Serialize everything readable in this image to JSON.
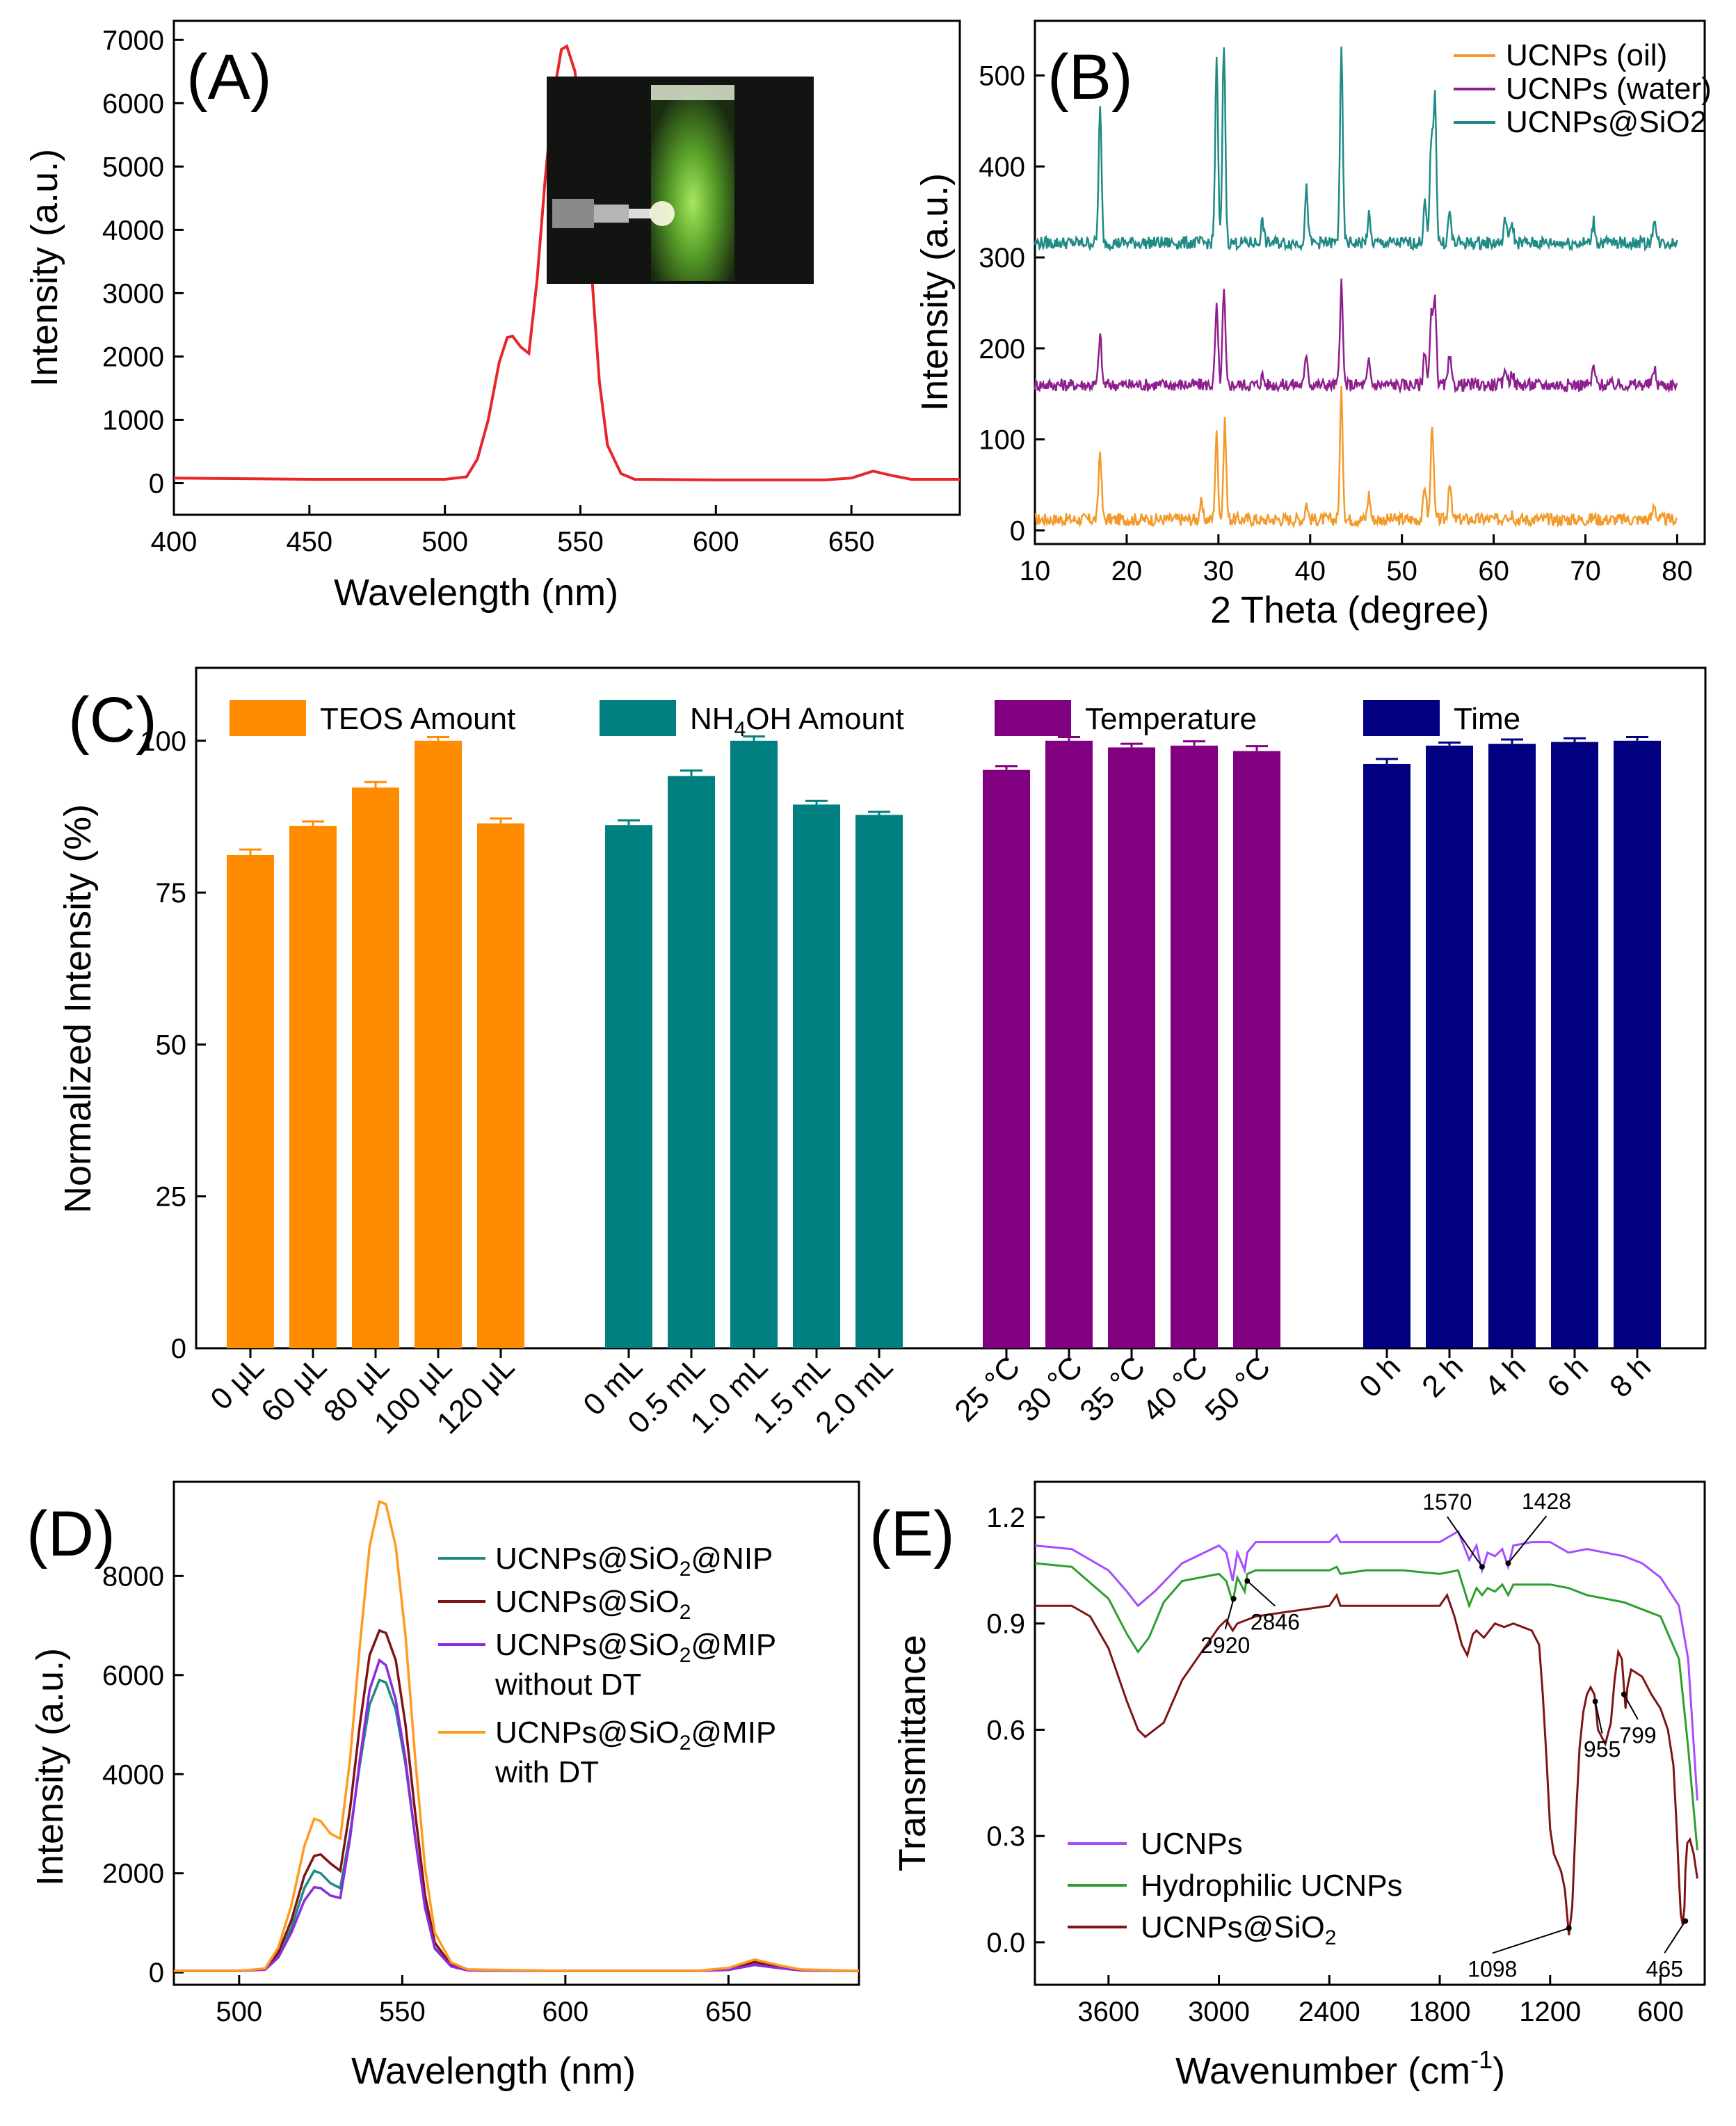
{
  "colors": {
    "a_line": "#e8262a",
    "oil": "#f39a2a",
    "water": "#8f1f8f",
    "sio2_teal": "#1f8a86",
    "teos": "#ff8c00",
    "nh4oh": "#008080",
    "temperature": "#800080",
    "time": "#000080",
    "nip": "#1f8a86",
    "sio2_dark": "#7f1414",
    "mip_without": "#8b2be2",
    "mip_with": "#ff9a1f",
    "ucnps_e": "#a64dff",
    "hydrophilic": "#2e9e2e"
  },
  "chart_data": [
    {
      "panel": "(A)",
      "type": "line",
      "xlabel": "Wavelength (nm)",
      "ylabel": "Intensity (a.u.)",
      "xlim": [
        400,
        690
      ],
      "ylim": [
        -500,
        7300
      ],
      "xticks": [
        "400",
        "450",
        "500",
        "550",
        "600",
        "650"
      ],
      "yticks": [
        "0",
        "1000",
        "2000",
        "3000",
        "4000",
        "5000",
        "6000",
        "7000"
      ],
      "x": [
        400,
        450,
        500,
        508,
        512,
        516,
        520,
        523,
        525,
        528,
        531,
        534,
        537,
        540,
        543,
        545,
        548,
        551,
        554,
        557,
        560,
        565,
        570,
        600,
        640,
        650,
        658,
        665,
        672,
        690
      ],
      "y": [
        80,
        60,
        60,
        100,
        380,
        1000,
        1900,
        2300,
        2320,
        2150,
        2050,
        3200,
        4800,
        6100,
        6850,
        6900,
        6500,
        5300,
        3400,
        1600,
        600,
        150,
        60,
        50,
        50,
        80,
        190,
        120,
        60,
        60
      ],
      "inset": "photo of green luminescent cuvette"
    },
    {
      "panel": "(B)",
      "type": "line",
      "xlabel": "2 Theta (degree)",
      "ylabel": "Intensity (a.u.)",
      "xlim": [
        10,
        83
      ],
      "ylim": [
        -15,
        560
      ],
      "xticks": [
        "10",
        "20",
        "30",
        "40",
        "50",
        "60",
        "70",
        "80"
      ],
      "yticks": [
        "0",
        "100",
        "200",
        "300",
        "400",
        "500"
      ],
      "legend": [
        "UCNPs (oil)",
        "UCNPs (water)",
        "UCNPs@SiO2"
      ],
      "series": [
        {
          "name": "UCNPs (oil)",
          "baseline": 12,
          "peaks": [
            [
              17.1,
              88
            ],
            [
              28.1,
              30
            ],
            [
              29.8,
              105
            ],
            [
              30.7,
              118
            ],
            [
              34.8,
              10
            ],
            [
              39.6,
              30
            ],
            [
              43.4,
              152
            ],
            [
              46.4,
              40
            ],
            [
              52.5,
              50
            ],
            [
              53.3,
              120
            ],
            [
              55.2,
              55
            ],
            [
              61.3,
              22
            ],
            [
              62.0,
              20
            ],
            [
              70.9,
              15
            ],
            [
              77.5,
              30
            ]
          ]
        },
        {
          "name": "UCNPs (water)",
          "baseline": 160,
          "peaks": [
            [
              17.1,
              215
            ],
            [
              29.8,
              245
            ],
            [
              30.6,
              262
            ],
            [
              34.8,
              170
            ],
            [
              39.6,
              195
            ],
            [
              43.4,
              270
            ],
            [
              46.4,
              185
            ],
            [
              52.5,
              200
            ],
            [
              53.2,
              235
            ],
            [
              53.6,
              255
            ],
            [
              55.2,
              190
            ],
            [
              61.3,
              180
            ],
            [
              62.0,
              175
            ],
            [
              70.9,
              180
            ],
            [
              77.5,
              178
            ]
          ]
        },
        {
          "name": "UCNPs@SiO2",
          "baseline": 316,
          "peaks": [
            [
              17.1,
              462
            ],
            [
              29.8,
              515
            ],
            [
              30.6,
              535
            ],
            [
              34.8,
              340
            ],
            [
              39.6,
              375
            ],
            [
              43.4,
              525
            ],
            [
              46.4,
              345
            ],
            [
              52.5,
              360
            ],
            [
              53.2,
              430
            ],
            [
              53.6,
              480
            ],
            [
              55.2,
              350
            ],
            [
              61.3,
              345
            ],
            [
              62.0,
              340
            ],
            [
              70.9,
              340
            ],
            [
              77.5,
              345
            ]
          ]
        }
      ]
    },
    {
      "panel": "(C)",
      "type": "bar",
      "ylabel": "Normalized Intensity (%)",
      "ylim": [
        0,
        112
      ],
      "yticks": [
        "0",
        "25",
        "50",
        "75",
        "100"
      ],
      "legend": [
        "TEOS Amount",
        "NH4OH Amount",
        "Temperature",
        "Time"
      ],
      "groups": [
        {
          "name": "TEOS Amount",
          "categories": [
            "0 μL",
            "60 μL",
            "80 μL",
            "100 μL",
            "120 μL"
          ],
          "values": [
            81.2,
            86.0,
            92.3,
            100.0,
            86.4
          ],
          "errors": [
            0.9,
            0.7,
            0.9,
            0.6,
            0.8
          ]
        },
        {
          "name": "NH4OH Amount",
          "categories": [
            "0 mL",
            "0.5 mL",
            "1.0 mL",
            "1.5 mL",
            "2.0 mL"
          ],
          "values": [
            86.1,
            94.2,
            100.0,
            89.5,
            87.8
          ],
          "errors": [
            0.8,
            0.9,
            0.7,
            0.6,
            0.5
          ]
        },
        {
          "name": "Temperature",
          "categories": [
            "25 °C",
            "30 °C",
            "35 °C",
            "40 °C",
            "50 °C"
          ],
          "values": [
            95.2,
            100.0,
            98.9,
            99.2,
            98.3
          ],
          "errors": [
            0.6,
            0.6,
            0.6,
            0.7,
            0.8
          ]
        },
        {
          "name": "Time",
          "categories": [
            "0 h",
            "2 h",
            "4 h",
            "6 h",
            "8 h"
          ],
          "values": [
            96.2,
            99.2,
            99.5,
            99.8,
            100.0
          ],
          "errors": [
            0.8,
            0.5,
            0.7,
            0.6,
            0.6
          ]
        }
      ]
    },
    {
      "panel": "(D)",
      "type": "line",
      "xlabel": "Wavelength (nm)",
      "ylabel": "Intensity (a.u.)",
      "xlim": [
        480,
        690
      ],
      "ylim": [
        -250,
        9900
      ],
      "xticks": [
        "500",
        "550",
        "600",
        "650"
      ],
      "yticks": [
        "0",
        "2000",
        "4000",
        "6000",
        "8000"
      ],
      "legend": [
        "UCNPs@SiO2@NIP",
        "UCNPs@SiO2",
        "UCNPs@SiO2@MIP without DT",
        "UCNPs@SiO2@MIP with DT"
      ],
      "x": [
        480,
        500,
        508,
        512,
        516,
        520,
        523,
        525,
        528,
        531,
        534,
        537,
        540,
        543,
        545,
        548,
        551,
        554,
        557,
        560,
        565,
        570,
        600,
        640,
        650,
        658,
        665,
        672,
        690
      ],
      "series": [
        {
          "name": "UCNPs@SiO2@NIP",
          "y": [
            30,
            30,
            60,
            350,
            900,
            1700,
            2050,
            2000,
            1800,
            1700,
            2800,
            4200,
            5400,
            5900,
            5850,
            5300,
            4200,
            2700,
            1300,
            500,
            120,
            40,
            30,
            30,
            60,
            170,
            100,
            40,
            30
          ]
        },
        {
          "name": "UCNPs@SiO2",
          "y": [
            30,
            30,
            70,
            400,
            1050,
            1950,
            2350,
            2380,
            2200,
            2050,
            3300,
            5000,
            6400,
            6900,
            6850,
            6300,
            5000,
            3200,
            1550,
            600,
            150,
            50,
            30,
            30,
            70,
            210,
            120,
            50,
            30
          ]
        },
        {
          "name": "UCNPs@SiO2@MIP without DT",
          "y": [
            30,
            30,
            55,
            300,
            800,
            1450,
            1720,
            1700,
            1550,
            1500,
            2700,
            4300,
            5700,
            6300,
            6200,
            5500,
            4300,
            2700,
            1300,
            480,
            120,
            40,
            30,
            30,
            50,
            150,
            90,
            40,
            30
          ]
        },
        {
          "name": "UCNPs@SiO2@MIP with DT",
          "y": [
            30,
            30,
            80,
            500,
            1350,
            2550,
            3100,
            3050,
            2800,
            2700,
            4300,
            6600,
            8600,
            9500,
            9450,
            8600,
            6800,
            4300,
            2100,
            800,
            200,
            60,
            30,
            30,
            90,
            260,
            150,
            60,
            30
          ]
        }
      ]
    },
    {
      "panel": "(E)",
      "type": "line",
      "xlabel": "Wavenumber (cm-1)",
      "ylabel": "Transmittance",
      "xlim": [
        4000,
        360
      ],
      "ylim": [
        -0.12,
        1.3
      ],
      "xticks": [
        "3600",
        "3000",
        "2400",
        "1800",
        "1200",
        "600"
      ],
      "yticks": [
        "0.0",
        "0.3",
        "0.6",
        "0.9",
        "1.2"
      ],
      "legend": [
        "UCNPs",
        "Hydrophilic UCNPs",
        "UCNPs@SiO2"
      ],
      "annotations": [
        "1570",
        "1428",
        "2920",
        "2846",
        "955",
        "799",
        "1098",
        "465"
      ],
      "series": [
        {
          "name": "UCNPs",
          "x": [
            4000,
            3800,
            3600,
            3500,
            3440,
            3350,
            3200,
            3000,
            2960,
            2925,
            2900,
            2860,
            2846,
            2800,
            2600,
            2400,
            2360,
            2340,
            2200,
            2000,
            1800,
            1700,
            1640,
            1600,
            1570,
            1540,
            1500,
            1460,
            1428,
            1400,
            1300,
            1200,
            1100,
            1000,
            900,
            800,
            700,
            600,
            500,
            450,
            400
          ],
          "y": [
            1.12,
            1.11,
            1.05,
            0.99,
            0.95,
            0.99,
            1.07,
            1.12,
            1.1,
            1.02,
            1.1,
            1.05,
            1.1,
            1.13,
            1.13,
            1.13,
            1.15,
            1.13,
            1.13,
            1.13,
            1.13,
            1.16,
            1.08,
            1.12,
            1.05,
            1.1,
            1.09,
            1.11,
            1.06,
            1.12,
            1.13,
            1.13,
            1.1,
            1.11,
            1.1,
            1.09,
            1.07,
            1.03,
            0.95,
            0.8,
            0.4
          ]
        },
        {
          "name": "Hydrophilic UCNPs",
          "x": [
            4000,
            3800,
            3600,
            3500,
            3440,
            3380,
            3300,
            3200,
            3000,
            2960,
            2925,
            2900,
            2860,
            2846,
            2800,
            2600,
            2400,
            2360,
            2340,
            2200,
            2000,
            1800,
            1700,
            1640,
            1600,
            1570,
            1540,
            1500,
            1460,
            1428,
            1400,
            1300,
            1200,
            1100,
            1000,
            900,
            800,
            700,
            600,
            500,
            450,
            400
          ],
          "y": [
            1.07,
            1.06,
            0.97,
            0.87,
            0.82,
            0.86,
            0.96,
            1.02,
            1.04,
            1.02,
            0.96,
            1.03,
            0.99,
            1.04,
            1.05,
            1.05,
            1.05,
            1.06,
            1.04,
            1.05,
            1.05,
            1.04,
            1.05,
            0.95,
            1.0,
            0.98,
            1.0,
            0.99,
            1.01,
            0.98,
            1.01,
            1.01,
            1.01,
            1.0,
            0.98,
            0.97,
            0.96,
            0.94,
            0.92,
            0.8,
            0.55,
            0.26
          ]
        },
        {
          "name": "UCNPs@SiO2",
          "x": [
            4000,
            3800,
            3700,
            3600,
            3500,
            3440,
            3400,
            3300,
            3200,
            3000,
            2960,
            2925,
            2900,
            2850,
            2800,
            2400,
            2360,
            2340,
            2200,
            2000,
            1800,
            1760,
            1720,
            1680,
            1650,
            1620,
            1600,
            1560,
            1500,
            1450,
            1400,
            1300,
            1260,
            1240,
            1220,
            1200,
            1180,
            1140,
            1120,
            1098,
            1080,
            1060,
            1040,
            1020,
            1000,
            980,
            960,
            955,
            940,
            900,
            870,
            850,
            830,
            810,
            799,
            790,
            780,
            760,
            700,
            650,
            600,
            560,
            530,
            520,
            510,
            500,
            490,
            480,
            470,
            465,
            455,
            440,
            420,
            400
          ],
          "y": [
            0.95,
            0.95,
            0.92,
            0.83,
            0.68,
            0.6,
            0.58,
            0.62,
            0.74,
            0.89,
            0.91,
            0.88,
            0.9,
            0.91,
            0.92,
            0.95,
            0.98,
            0.95,
            0.95,
            0.95,
            0.95,
            0.98,
            0.92,
            0.84,
            0.81,
            0.87,
            0.88,
            0.86,
            0.9,
            0.89,
            0.9,
            0.88,
            0.84,
            0.7,
            0.52,
            0.32,
            0.25,
            0.2,
            0.15,
            0.02,
            0.1,
            0.35,
            0.55,
            0.65,
            0.7,
            0.72,
            0.7,
            0.68,
            0.6,
            0.56,
            0.62,
            0.74,
            0.82,
            0.8,
            0.72,
            0.66,
            0.72,
            0.77,
            0.75,
            0.7,
            0.66,
            0.6,
            0.5,
            0.4,
            0.3,
            0.18,
            0.08,
            0.05,
            0.1,
            0.2,
            0.28,
            0.29,
            0.25,
            0.18
          ]
        }
      ]
    }
  ]
}
